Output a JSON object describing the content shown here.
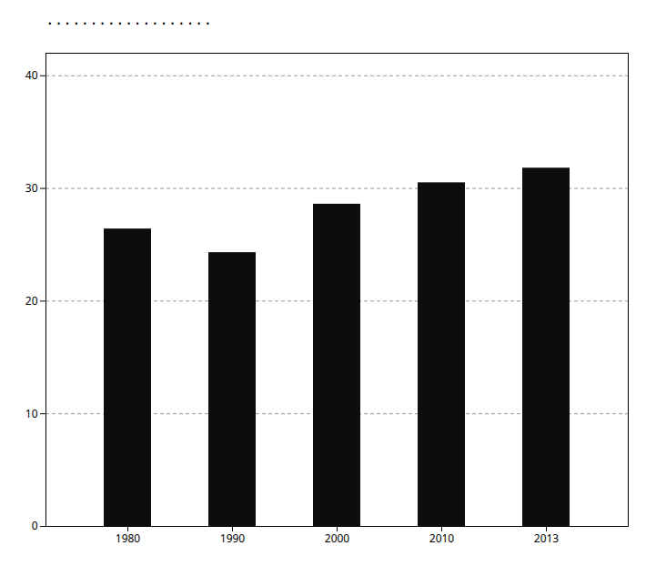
{
  "chart_data": {
    "type": "bar",
    "title": "...................",
    "categories": [
      "1980",
      "1990",
      "2000",
      "2010",
      "2013"
    ],
    "values": [
      26.4,
      24.3,
      28.6,
      30.5,
      31.8
    ],
    "color": "#0d0d0d",
    "ylim": [
      0,
      42
    ],
    "yticks": [
      0,
      10,
      20,
      30,
      40
    ],
    "grid": true
  }
}
